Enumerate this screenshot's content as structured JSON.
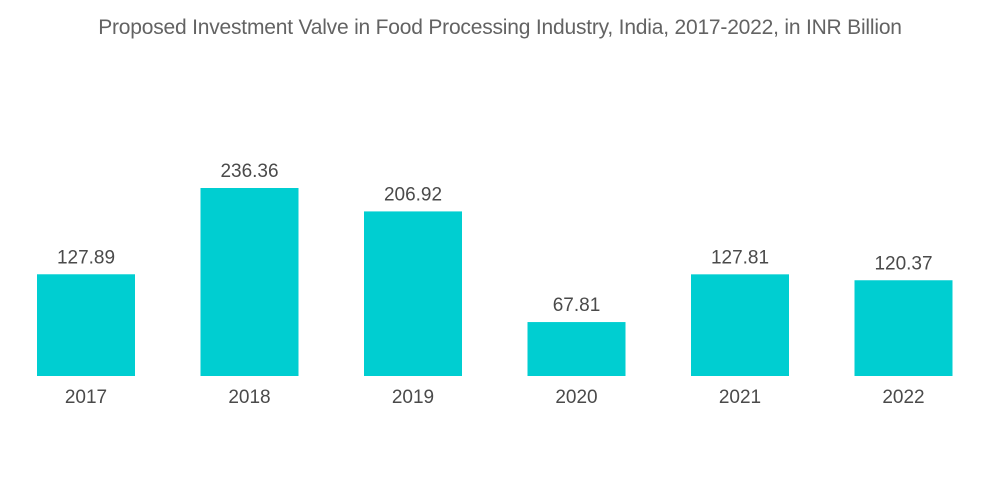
{
  "chart_data": {
    "type": "bar",
    "title": "Proposed Investment Valve in Food Processing Industry, India, 2017-2022, in INR Billion",
    "xlabel": "",
    "ylabel": "",
    "categories": [
      "2017",
      "2018",
      "2019",
      "2020",
      "2021",
      "2022"
    ],
    "values": [
      127.89,
      236.36,
      206.92,
      67.81,
      127.81,
      120.37
    ],
    "data_labels": [
      "127.89",
      "236.36",
      "206.92",
      "67.81",
      "127.81",
      "120.37"
    ],
    "ylim": [
      0,
      236.36
    ],
    "grid": false,
    "legend": "none",
    "bar_color": "#00CED1"
  }
}
